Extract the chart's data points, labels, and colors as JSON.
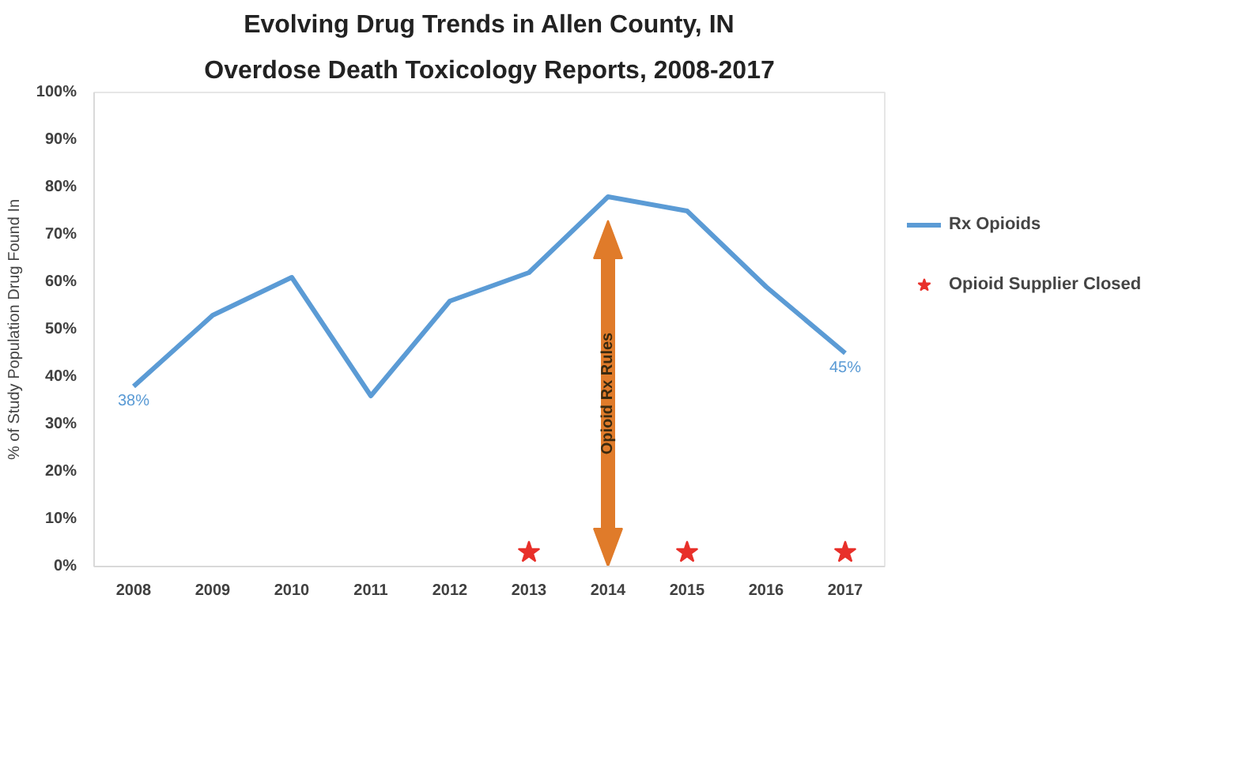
{
  "chart_data": {
    "type": "line",
    "title": "Evolving Drug Trends in Allen County, IN",
    "subtitle": "Overdose Death Toxicology Reports, 2008-2017",
    "ylabel": "% of Study Population Drug Found In",
    "categories": [
      "2008",
      "2009",
      "2010",
      "2011",
      "2012",
      "2013",
      "2014",
      "2015",
      "2016",
      "2017"
    ],
    "series": [
      {
        "name": "Rx Opioids",
        "color": "#5b9bd5",
        "values": [
          38,
          53,
          61,
          36,
          56,
          62,
          78,
          75,
          59,
          45
        ],
        "value_labels": [
          "38%",
          null,
          null,
          null,
          null,
          null,
          null,
          null,
          null,
          "45%"
        ]
      },
      {
        "name": "Opioid Supplier Closed",
        "type": "scatter",
        "marker": "star",
        "color": "#e8302a",
        "values": [
          null,
          null,
          null,
          null,
          null,
          3,
          null,
          3,
          null,
          3
        ]
      }
    ],
    "ref_lines": [
      {
        "axis": "x",
        "value": "2014",
        "label": "Opioid Rx Rules",
        "color": "#e07b2a"
      }
    ],
    "ylim": [
      0,
      100
    ],
    "yticks": [
      {
        "value": 0,
        "label": "0%"
      },
      {
        "value": 10,
        "label": "10%"
      },
      {
        "value": 20,
        "label": "20%"
      },
      {
        "value": 30,
        "label": "30%"
      },
      {
        "value": 40,
        "label": "40%"
      },
      {
        "value": 50,
        "label": "50%"
      },
      {
        "value": 60,
        "label": "60%"
      },
      {
        "value": 70,
        "label": "70%"
      },
      {
        "value": 80,
        "label": "80%"
      },
      {
        "value": 90,
        "label": "90%"
      },
      {
        "value": 100,
        "label": "100%"
      }
    ],
    "grid": false,
    "legend": "right"
  }
}
